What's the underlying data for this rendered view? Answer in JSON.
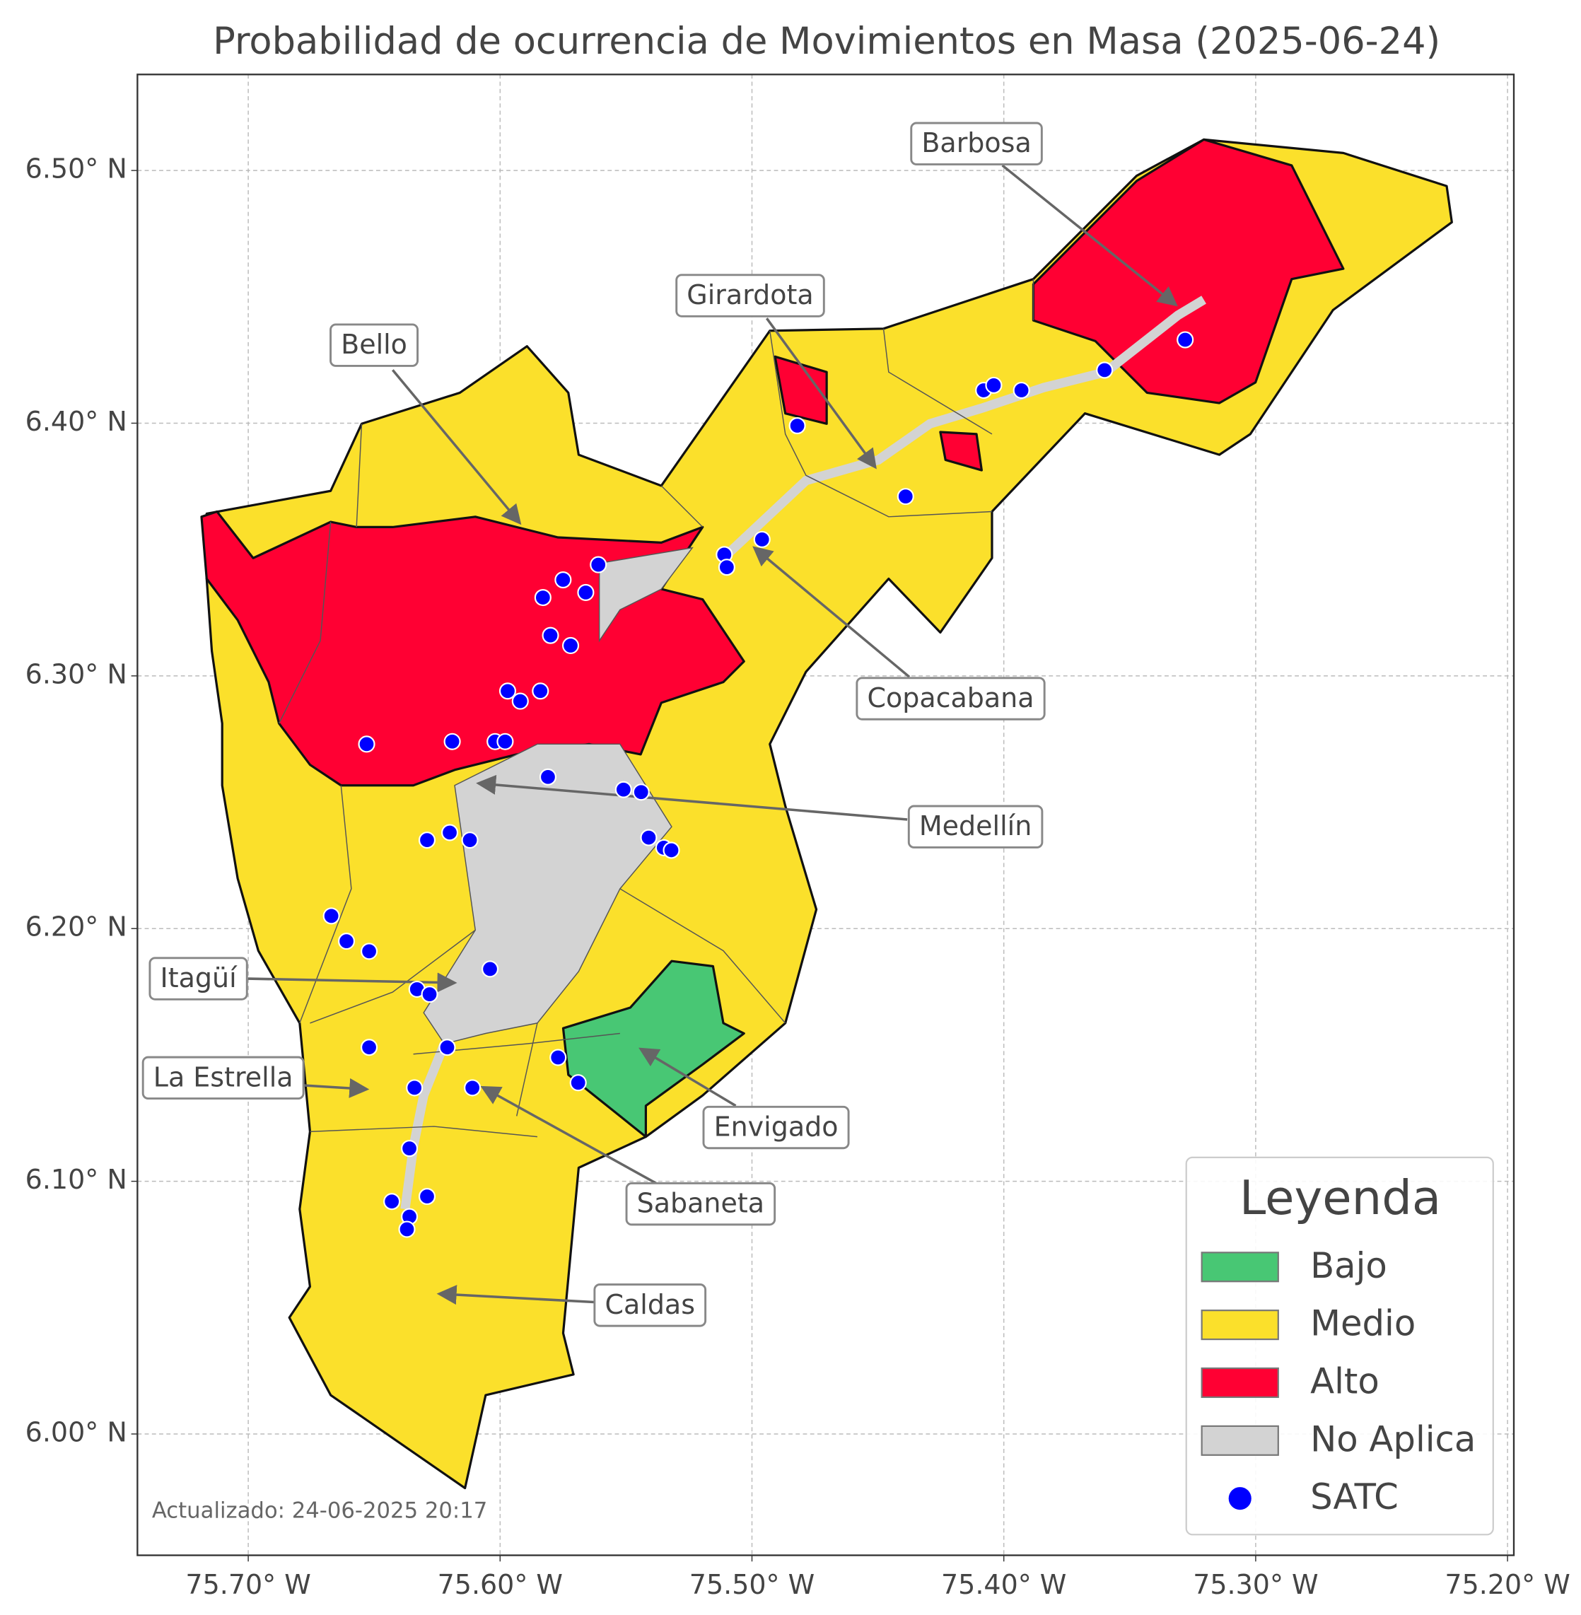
{
  "map": {
    "title": "Probabilidad de ocurrencia de Movimientos en Masa (2025-06-24)",
    "xlim": [
      -75.744,
      -75.1975
    ],
    "ylim": [
      5.952,
      6.538
    ],
    "xticks": [
      {
        "value": -75.7,
        "label": "75.70° W"
      },
      {
        "value": -75.6,
        "label": "75.60° W"
      },
      {
        "value": -75.5,
        "label": "75.50° W"
      },
      {
        "value": -75.4,
        "label": "75.40° W"
      },
      {
        "value": -75.3,
        "label": "75.30° W"
      },
      {
        "value": -75.2,
        "label": "75.20° W"
      }
    ],
    "yticks": [
      {
        "value": 6.5,
        "label": "6.50° N"
      },
      {
        "value": 6.4,
        "label": "6.40° N"
      },
      {
        "value": 6.3,
        "label": "6.30° N"
      },
      {
        "value": 6.2,
        "label": "6.20° N"
      },
      {
        "value": 6.1,
        "label": "6.10° N"
      },
      {
        "value": 6.0,
        "label": "6.00° N"
      }
    ],
    "grid": true,
    "annotations": [
      "Barbosa",
      "Girardota",
      "Bello",
      "Copacabana",
      "Medellín",
      "Itagüí",
      "La Estrella",
      "Envigado",
      "Sabaneta",
      "Caldas"
    ],
    "legend": {
      "title": "Leyenda",
      "corner": "lower right",
      "items": [
        {
          "label": "Bajo",
          "color": "#48c774"
        },
        {
          "label": "Medio",
          "color": "#fbe02b"
        },
        {
          "label": "Alto",
          "color": "#ff0033"
        },
        {
          "label": "No Aplica",
          "color": "#d3d3d3"
        },
        {
          "label": "SATC",
          "color": "#0000ff"
        }
      ]
    },
    "points_color": "#0000ff",
    "points": [
      [
        -75.328,
        6.433
      ],
      [
        -75.36,
        6.421
      ],
      [
        -75.408,
        6.413
      ],
      [
        -75.404,
        6.415
      ],
      [
        -75.393,
        6.413
      ],
      [
        -75.482,
        6.399
      ],
      [
        -75.439,
        6.371
      ],
      [
        -75.496,
        6.354
      ],
      [
        -75.511,
        6.348
      ],
      [
        -75.51,
        6.343
      ],
      [
        -75.561,
        6.344
      ],
      [
        -75.575,
        6.338
      ],
      [
        -75.583,
        6.331
      ],
      [
        -75.566,
        6.333
      ],
      [
        -75.58,
        6.316
      ],
      [
        -75.572,
        6.312
      ],
      [
        -75.597,
        6.294
      ],
      [
        -75.584,
        6.294
      ],
      [
        -75.592,
        6.29
      ],
      [
        -75.653,
        6.273
      ],
      [
        -75.619,
        6.274
      ],
      [
        -75.602,
        6.274
      ],
      [
        -75.598,
        6.274
      ],
      [
        -75.581,
        6.26
      ],
      [
        -75.551,
        6.255
      ],
      [
        -75.544,
        6.254
      ],
      [
        -75.541,
        6.236
      ],
      [
        -75.535,
        6.232
      ],
      [
        -75.532,
        6.231
      ],
      [
        -75.62,
        6.238
      ],
      [
        -75.629,
        6.235
      ],
      [
        -75.612,
        6.235
      ],
      [
        -75.667,
        6.205
      ],
      [
        -75.661,
        6.195
      ],
      [
        -75.652,
        6.191
      ],
      [
        -75.604,
        6.184
      ],
      [
        -75.633,
        6.176
      ],
      [
        -75.628,
        6.174
      ],
      [
        -75.652,
        6.153
      ],
      [
        -75.621,
        6.153
      ],
      [
        -75.577,
        6.149
      ],
      [
        -75.569,
        6.139
      ],
      [
        -75.634,
        6.137
      ],
      [
        -75.611,
        6.137
      ],
      [
        -75.636,
        6.113
      ],
      [
        -75.643,
        6.092
      ],
      [
        -75.629,
        6.094
      ],
      [
        -75.636,
        6.086
      ],
      [
        -75.637,
        6.081
      ]
    ],
    "updated": "Actualizado: 24-06-2025 20:17"
  }
}
